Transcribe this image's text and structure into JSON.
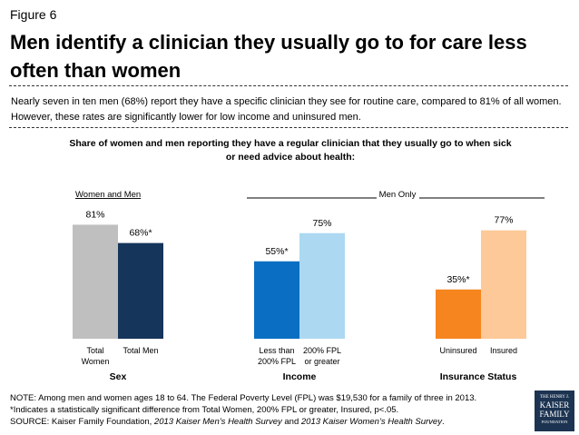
{
  "figure_label": "Figure 6",
  "title": "Men identify a clinician they usually go to for care less often than women",
  "summary": "Nearly seven in ten men (68%) report they have a specific clinician they see for routine care, compared to 81% of all women. However, these rates are significantly lower for low income and uninsured men.",
  "subtitle_line1": "Share of women and men reporting they have a regular clinician that they usually go to when sick",
  "subtitle_line2": "or need advice about health:",
  "chart_data": {
    "type": "bar",
    "title": "Share of women and men reporting they have a regular clinician that they usually go to when sick or need advice about health:",
    "ylim": [
      0,
      100
    ],
    "grid": false,
    "panels": [
      {
        "header": "Women and Men",
        "group_label": "Sex"
      },
      {
        "header": "Men Only",
        "group_label": "Income"
      },
      {
        "header": "Men Only",
        "group_label": "Insurance Status"
      }
    ],
    "men_only_label": "Men Only",
    "bars": [
      {
        "category": "Total Women",
        "cat_lines": [
          "Total",
          "Women"
        ],
        "value": 81,
        "label": "81%",
        "color": "#bfbfbf",
        "group": "Sex"
      },
      {
        "category": "Total Men",
        "cat_lines": [
          "Total Men"
        ],
        "value": 68,
        "label": "68%*",
        "color": "#15355a",
        "group": "Sex"
      },
      {
        "category": "Less than 200% FPL",
        "cat_lines": [
          "Less than",
          "200% FPL"
        ],
        "value": 55,
        "label": "55%*",
        "color": "#0a6fc2",
        "group": "Income"
      },
      {
        "category": "200% FPL or greater",
        "cat_lines": [
          "200% FPL",
          "or greater"
        ],
        "value": 75,
        "label": "75%",
        "color": "#acd8f2",
        "group": "Income"
      },
      {
        "category": "Uninsured",
        "cat_lines": [
          "Uninsured"
        ],
        "value": 35,
        "label": "35%*",
        "color": "#f6851f",
        "group": "Insurance Status"
      },
      {
        "category": "Insured",
        "cat_lines": [
          "Insured"
        ],
        "value": 77,
        "label": "77%",
        "color": "#fdc998",
        "group": "Insurance Status"
      }
    ]
  },
  "notes": {
    "line1": "NOTE: Among men and women ages 18 to 64. The Federal Poverty Level (FPL) was $19,530 for a family of three in 2013.",
    "line2": "*Indicates a statistically significant difference from Total Women, 200% FPL or greater, Insured, p<.05.",
    "source_prefix": "SOURCE: Kaiser Family Foundation, ",
    "source_men": "2013 Kaiser Men’s Health Survey",
    "source_and": " and ",
    "source_women": "2013 Kaiser Women’s Health Survey",
    "source_end": "."
  },
  "logo": {
    "line1": "THE HENRY J.",
    "line2": "KAISER",
    "line3": "FAMILY",
    "line4": "FOUNDATION"
  }
}
